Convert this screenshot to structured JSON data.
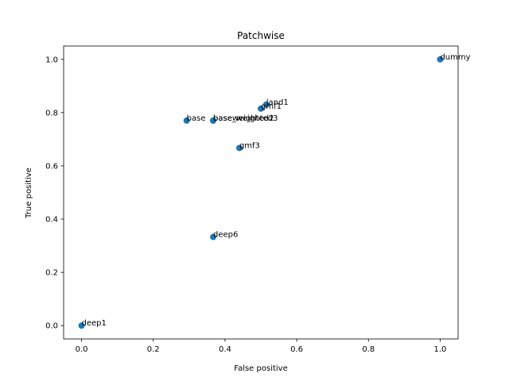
{
  "chart_data": {
    "type": "scatter",
    "title": "Patchwise",
    "xlabel": "False positive",
    "ylabel": "True positive",
    "xlim": [
      -0.05,
      1.05
    ],
    "ylim": [
      -0.05,
      1.05
    ],
    "xticks": [
      "0.0",
      "0.2",
      "0.4",
      "0.6",
      "0.8",
      "1.0"
    ],
    "yticks": [
      "0.0",
      "0.2",
      "0.4",
      "0.6",
      "0.8",
      "1.0"
    ],
    "grid": false,
    "color": "#1f77b4",
    "points": [
      {
        "label": "dummy",
        "x": 1.0,
        "y": 1.0
      },
      {
        "label": "land1",
        "x": 0.515,
        "y": 0.83
      },
      {
        "label": "gmf1",
        "x": 0.5,
        "y": 0.815
      },
      {
        "label": "base",
        "x": 0.293,
        "y": 0.77
      },
      {
        "label": "baseweighted2",
        "x": 0.367,
        "y": 0.77
      },
      {
        "label": "base_weighted3",
        "x": 0.367,
        "y": 0.77
      },
      {
        "label": "gmf3",
        "x": 0.44,
        "y": 0.667
      },
      {
        "label": "deep6",
        "x": 0.367,
        "y": 0.333
      },
      {
        "label": "deep1",
        "x": 0.0,
        "y": 0.0
      }
    ]
  }
}
